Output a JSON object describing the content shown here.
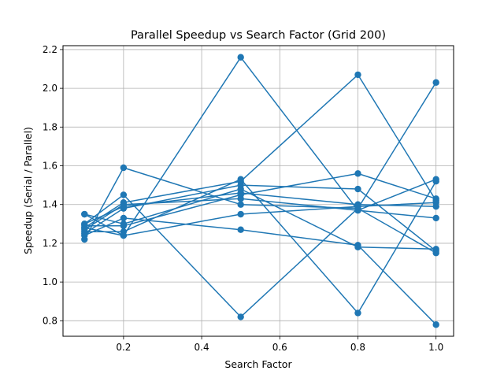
{
  "chart_data": {
    "type": "line",
    "title": "Parallel Speedup vs Search Factor (Grid 200)",
    "xlabel": "Search Factor",
    "ylabel": "Speedup (Serial / Parallel)",
    "x": [
      0.1,
      0.2,
      0.5,
      0.8,
      1.0
    ],
    "xlim": [
      0.045,
      1.045
    ],
    "ylim": [
      0.72,
      2.22
    ],
    "xticks": [
      0.2,
      0.4,
      0.6,
      0.8,
      1.0
    ],
    "xtick_labels": [
      "0.2",
      "0.4",
      "0.6",
      "0.8",
      "1.0"
    ],
    "yticks": [
      0.8,
      1.0,
      1.2,
      1.4,
      1.6,
      1.8,
      2.0,
      2.2
    ],
    "ytick_labels": [
      "0.8",
      "1.0",
      "1.2",
      "1.4",
      "1.6",
      "1.8",
      "2.0",
      "2.2"
    ],
    "grid": true,
    "color": "#1f77b4",
    "series": [
      {
        "values": [
          1.35,
          1.24,
          2.16,
          1.37,
          1.53
        ]
      },
      {
        "values": [
          1.22,
          1.59,
          1.4,
          1.38,
          1.15
        ]
      },
      {
        "values": [
          1.3,
          1.45,
          0.82,
          1.38,
          2.03
        ]
      },
      {
        "values": [
          1.28,
          1.41,
          1.52,
          2.07,
          1.42
        ]
      },
      {
        "values": [
          1.26,
          1.26,
          1.53,
          0.84,
          1.52
        ]
      },
      {
        "values": [
          1.24,
          1.33,
          1.27,
          1.19,
          0.78
        ]
      },
      {
        "values": [
          1.29,
          1.29,
          1.45,
          1.56,
          1.43
        ]
      },
      {
        "values": [
          1.25,
          1.38,
          1.5,
          1.48,
          1.16
        ]
      },
      {
        "values": [
          1.35,
          1.3,
          1.48,
          1.18,
          1.17
        ]
      },
      {
        "values": [
          1.27,
          1.4,
          1.43,
          1.37,
          1.33
        ]
      },
      {
        "values": [
          1.3,
          1.39,
          1.46,
          1.4,
          1.39
        ]
      },
      {
        "values": [
          1.28,
          1.24,
          1.35,
          1.39,
          1.41
        ]
      }
    ]
  }
}
